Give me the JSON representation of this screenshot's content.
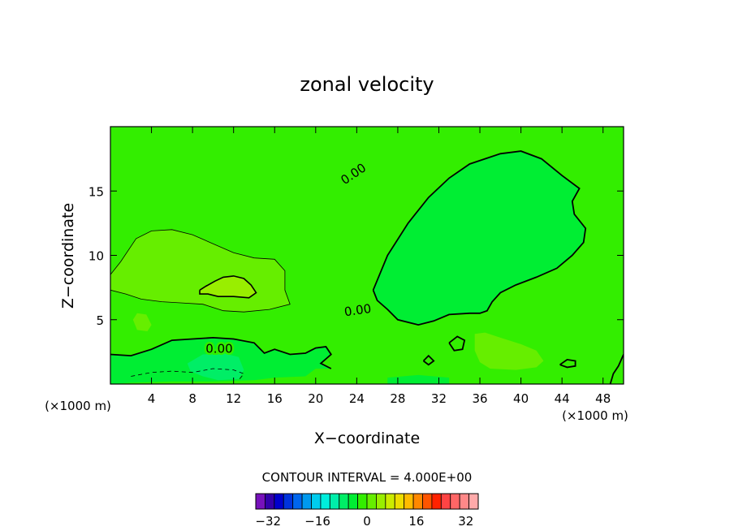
{
  "chart_data": {
    "type": "contour",
    "title": "zonal velocity",
    "xlabel": "X−coordinate",
    "ylabel": "Z−coordinate",
    "x_unit_left": "(×1000 m)",
    "x_unit_right": "(×1000 m)",
    "xlim": [
      0,
      50
    ],
    "ylim": [
      0,
      20
    ],
    "x_ticks": [
      4,
      8,
      12,
      16,
      20,
      24,
      28,
      32,
      36,
      40,
      44,
      48
    ],
    "y_ticks": [
      5,
      10,
      15
    ],
    "background_fill": "#33ee00",
    "contour_line_labels": [
      "0.00",
      "0.00",
      "0.00"
    ],
    "contour_interval_text": "CONTOUR INTERVAL = 4.000E+00",
    "colorbar": {
      "min": -36,
      "max": 36,
      "step": 4,
      "colors": [
        "#7711bb",
        "#3300aa",
        "#0000cc",
        "#0033dd",
        "#0066ee",
        "#0099ee",
        "#00ccee",
        "#00eedd",
        "#00eeaa",
        "#00ee66",
        "#00ee33",
        "#33ee00",
        "#66ee00",
        "#99ee00",
        "#cceb00",
        "#eedd00",
        "#ffbb00",
        "#ff8800",
        "#ff5500",
        "#ff2200",
        "#ff4444",
        "#ff6666",
        "#ff8888",
        "#ffaaaa"
      ],
      "tick_labels": [
        "−32",
        "−16",
        "0",
        "16",
        "32"
      ],
      "tick_values": [
        -32,
        -16,
        0,
        16,
        32
      ]
    },
    "regions": [
      {
        "kind": "positive",
        "level": 4,
        "color": "#66ee00",
        "points": [
          [
            0,
            8.5
          ],
          [
            1,
            9.5
          ],
          [
            2.5,
            11.3
          ],
          [
            4,
            11.9
          ],
          [
            6,
            12
          ],
          [
            8,
            11.6
          ],
          [
            10,
            10.9
          ],
          [
            12,
            10.2
          ],
          [
            14,
            9.8
          ],
          [
            16,
            9.7
          ],
          [
            17,
            8.8
          ],
          [
            17,
            7.3
          ],
          [
            17.5,
            6.2
          ],
          [
            15.5,
            5.8
          ],
          [
            13,
            5.6
          ],
          [
            11,
            5.7
          ],
          [
            9,
            6.2
          ],
          [
            7,
            6.3
          ],
          [
            5,
            6.4
          ],
          [
            3,
            6.6
          ],
          [
            1.5,
            7
          ],
          [
            0,
            7.3
          ]
        ]
      },
      {
        "kind": "positive",
        "level": 8,
        "color": "#99ee00",
        "points": [
          [
            8.7,
            7.3
          ],
          [
            9.3,
            7.6
          ],
          [
            10.2,
            8
          ],
          [
            11,
            8.3
          ],
          [
            12,
            8.4
          ],
          [
            13,
            8.2
          ],
          [
            13.7,
            7.7
          ],
          [
            14.2,
            7.1
          ],
          [
            13.5,
            6.7
          ],
          [
            12,
            6.8
          ],
          [
            10.5,
            6.8
          ],
          [
            9.5,
            7
          ],
          [
            8.7,
            7
          ]
        ]
      },
      {
        "kind": "positive",
        "level": 4,
        "color": "#66ee00",
        "points": [
          [
            35.5,
            3.9
          ],
          [
            36.5,
            4
          ],
          [
            38,
            3.6
          ],
          [
            40,
            3.1
          ],
          [
            41.5,
            2.6
          ],
          [
            42.2,
            1.8
          ],
          [
            41.5,
            1.3
          ],
          [
            39.5,
            1.1
          ],
          [
            37,
            1.2
          ],
          [
            36,
            1.7
          ],
          [
            35.5,
            2.6
          ]
        ]
      },
      {
        "kind": "positive",
        "level": 4,
        "color": "#66ee00",
        "points": [
          [
            2.2,
            5
          ],
          [
            2.6,
            5.5
          ],
          [
            3.5,
            5.4
          ],
          [
            4,
            4.6
          ],
          [
            3.6,
            4.1
          ],
          [
            2.6,
            4.2
          ]
        ]
      },
      {
        "kind": "negative",
        "level": -4,
        "color": "#00ee33",
        "points": [
          [
            0,
            2.3
          ],
          [
            2,
            2.2
          ],
          [
            4,
            2.7
          ],
          [
            6,
            3.4
          ],
          [
            8,
            3.5
          ],
          [
            10,
            3.6
          ],
          [
            12,
            3.5
          ],
          [
            14,
            3.2
          ],
          [
            15,
            2.4
          ],
          [
            16,
            2.7
          ],
          [
            17.5,
            2.3
          ],
          [
            19,
            2.4
          ],
          [
            20,
            2.8
          ],
          [
            21,
            2.9
          ],
          [
            21.5,
            2.3
          ],
          [
            20.5,
            1.6
          ],
          [
            21.5,
            1.2
          ],
          [
            20,
            1.2
          ],
          [
            19,
            0.6
          ],
          [
            16,
            0.5
          ],
          [
            14,
            0.3
          ],
          [
            10,
            0.2
          ],
          [
            6,
            0.2
          ],
          [
            2,
            0.1
          ],
          [
            0,
            0
          ]
        ]
      },
      {
        "kind": "negative",
        "level": -8,
        "color": "#00ee66",
        "points": [
          [
            7.5,
            1.6
          ],
          [
            9,
            2.3
          ],
          [
            11,
            2.4
          ],
          [
            12.5,
            2.1
          ],
          [
            13,
            1.1
          ],
          [
            12.5,
            0.4
          ],
          [
            10.5,
            0.3
          ],
          [
            9,
            0.6
          ],
          [
            7.8,
            1
          ]
        ]
      },
      {
        "kind": "negative",
        "level": -4,
        "color": "#00ee33",
        "points": [
          [
            25.6,
            7.3
          ],
          [
            27,
            10
          ],
          [
            29,
            12.5
          ],
          [
            31,
            14.5
          ],
          [
            33,
            16
          ],
          [
            35,
            17.1
          ],
          [
            38,
            17.9
          ],
          [
            40,
            18.1
          ],
          [
            42,
            17.5
          ],
          [
            44,
            16.2
          ],
          [
            45.7,
            15.2
          ],
          [
            45,
            14.2
          ],
          [
            45.2,
            13.2
          ],
          [
            46.3,
            12.1
          ],
          [
            46.1,
            11
          ],
          [
            45,
            10
          ],
          [
            43.5,
            9
          ],
          [
            41.5,
            8.3
          ],
          [
            39.5,
            7.7
          ],
          [
            38,
            7.1
          ],
          [
            37.2,
            6.4
          ],
          [
            36.7,
            5.7
          ],
          [
            36,
            5.5
          ],
          [
            35,
            5.5
          ],
          [
            33,
            5.4
          ],
          [
            31.5,
            4.9
          ],
          [
            30,
            4.6
          ],
          [
            28,
            5
          ],
          [
            27,
            5.8
          ],
          [
            26,
            6.5
          ]
        ]
      },
      {
        "kind": "negative",
        "level": -4,
        "color": "#00ee33",
        "points": [
          [
            27,
            0
          ],
          [
            30,
            0
          ],
          [
            33,
            0
          ],
          [
            33,
            0.5
          ],
          [
            30,
            0.7
          ],
          [
            27,
            0.5
          ]
        ]
      }
    ],
    "contour_lines": [
      {
        "kind": "positive",
        "color": "#000000",
        "points": [
          [
            0,
            8.5
          ],
          [
            1,
            9.5
          ],
          [
            2.5,
            11.3
          ],
          [
            4,
            11.9
          ],
          [
            6,
            12
          ],
          [
            8,
            11.6
          ],
          [
            10,
            10.9
          ],
          [
            12,
            10.2
          ],
          [
            14,
            9.8
          ],
          [
            16,
            9.7
          ],
          [
            17,
            8.8
          ],
          [
            17,
            7.3
          ],
          [
            17.5,
            6.2
          ],
          [
            15.5,
            5.8
          ],
          [
            13,
            5.6
          ],
          [
            11,
            5.7
          ],
          [
            9,
            6.2
          ],
          [
            7,
            6.3
          ],
          [
            5,
            6.4
          ],
          [
            3,
            6.6
          ],
          [
            1.5,
            7
          ],
          [
            0,
            7.3
          ]
        ]
      },
      {
        "kind": "positive_strong",
        "color": "#000000",
        "points": [
          [
            8.7,
            7.3
          ],
          [
            9.3,
            7.6
          ],
          [
            10.2,
            8
          ],
          [
            11,
            8.3
          ],
          [
            12,
            8.4
          ],
          [
            13,
            8.2
          ],
          [
            13.7,
            7.7
          ],
          [
            14.2,
            7.1
          ],
          [
            13.5,
            6.7
          ],
          [
            12,
            6.8
          ],
          [
            10.5,
            6.8
          ],
          [
            9.5,
            7
          ],
          [
            8.7,
            7
          ],
          [
            8.7,
            7.3
          ]
        ]
      },
      {
        "kind": "zero",
        "color": "#000000",
        "points": [
          [
            25.6,
            7.3
          ],
          [
            27,
            10
          ],
          [
            29,
            12.5
          ],
          [
            31,
            14.5
          ],
          [
            33,
            16
          ],
          [
            35,
            17.1
          ],
          [
            38,
            17.9
          ],
          [
            40,
            18.1
          ],
          [
            42,
            17.5
          ],
          [
            44,
            16.2
          ],
          [
            45.7,
            15.2
          ],
          [
            45,
            14.2
          ],
          [
            45.2,
            13.2
          ],
          [
            46.3,
            12.1
          ],
          [
            46.1,
            11
          ],
          [
            45,
            10
          ],
          [
            43.5,
            9
          ],
          [
            41.5,
            8.3
          ],
          [
            39.5,
            7.7
          ],
          [
            38,
            7.1
          ],
          [
            37.2,
            6.4
          ],
          [
            36.7,
            5.7
          ],
          [
            36,
            5.5
          ],
          [
            35,
            5.5
          ],
          [
            33,
            5.4
          ],
          [
            31.5,
            4.9
          ],
          [
            30,
            4.6
          ],
          [
            28,
            5
          ],
          [
            27,
            5.8
          ],
          [
            26,
            6.5
          ],
          [
            25.6,
            7.3
          ]
        ]
      },
      {
        "kind": "zero",
        "color": "#000000",
        "points": [
          [
            0,
            2.3
          ],
          [
            2,
            2.2
          ],
          [
            4,
            2.7
          ],
          [
            6,
            3.4
          ],
          [
            8,
            3.5
          ],
          [
            10,
            3.6
          ],
          [
            12,
            3.5
          ],
          [
            14,
            3.2
          ],
          [
            15,
            2.4
          ],
          [
            16,
            2.7
          ],
          [
            17.5,
            2.3
          ],
          [
            19,
            2.4
          ],
          [
            20,
            2.8
          ],
          [
            21,
            2.9
          ],
          [
            21.5,
            2.3
          ],
          [
            20.5,
            1.6
          ],
          [
            21.5,
            1.2
          ]
        ]
      },
      {
        "kind": "zero",
        "color": "#000000",
        "points": [
          [
            33,
            3.2
          ],
          [
            33.8,
            3.7
          ],
          [
            34.5,
            3.4
          ],
          [
            34.3,
            2.7
          ],
          [
            33.5,
            2.6
          ],
          [
            33,
            3.2
          ]
        ]
      },
      {
        "kind": "zero",
        "color": "#000000",
        "points": [
          [
            30.5,
            1.8
          ],
          [
            31,
            2.2
          ],
          [
            31.5,
            1.8
          ],
          [
            31,
            1.5
          ],
          [
            30.5,
            1.8
          ]
        ]
      },
      {
        "kind": "zero",
        "color": "#000000",
        "points": [
          [
            43.8,
            1.5
          ],
          [
            44.5,
            1.9
          ],
          [
            45.3,
            1.8
          ],
          [
            45.3,
            1.4
          ],
          [
            44.5,
            1.3
          ],
          [
            43.8,
            1.5
          ]
        ]
      },
      {
        "kind": "zero",
        "color": "#000000",
        "points": [
          [
            48.7,
            0
          ],
          [
            49,
            0.8
          ],
          [
            49.5,
            1.4
          ],
          [
            50,
            2.3
          ]
        ]
      },
      {
        "kind": "negative",
        "color": "#000000",
        "points": [
          [
            2,
            0.6
          ],
          [
            4,
            0.9
          ],
          [
            6,
            1
          ],
          [
            8,
            0.9
          ],
          [
            10,
            1.2
          ],
          [
            12,
            1.1
          ],
          [
            13,
            0.8
          ],
          [
            12.5,
            0.3
          ]
        ]
      }
    ]
  }
}
